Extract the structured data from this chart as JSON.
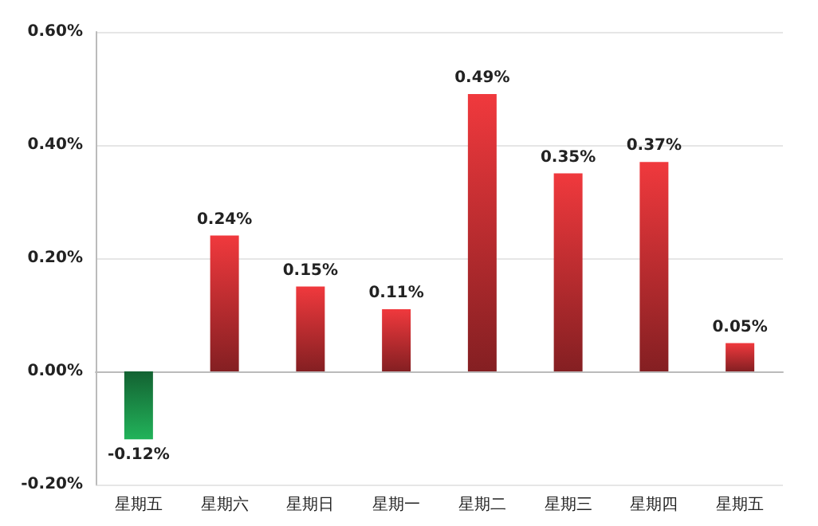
{
  "chart_data": {
    "type": "bar",
    "categories": [
      "星期五",
      "星期六",
      "星期日",
      "星期一",
      "星期二",
      "星期三",
      "星期四",
      "星期五"
    ],
    "values": [
      -0.12,
      0.24,
      0.15,
      0.11,
      0.49,
      0.35,
      0.37,
      0.05
    ],
    "colors": [
      "#22b35a",
      "#f0393d",
      "#f0393d",
      "#f0393d",
      "#f0393d",
      "#f0393d",
      "#f0393d",
      "#f0393d"
    ],
    "value_labels": [
      "-0.12%",
      "0.24%",
      "0.15%",
      "0.11%",
      "0.49%",
      "0.35%",
      "0.37%",
      "0.05%"
    ],
    "ylim": [
      -0.2,
      0.6
    ],
    "yticks": [
      {
        "value": -0.2,
        "label": "-0.20%"
      },
      {
        "value": 0,
        "label": "0.00%"
      },
      {
        "value": 0.2,
        "label": "0.20%"
      },
      {
        "value": 0.4,
        "label": "0.40%"
      },
      {
        "value": 0.6,
        "label": "0.60%"
      }
    ],
    "grid": "y"
  }
}
